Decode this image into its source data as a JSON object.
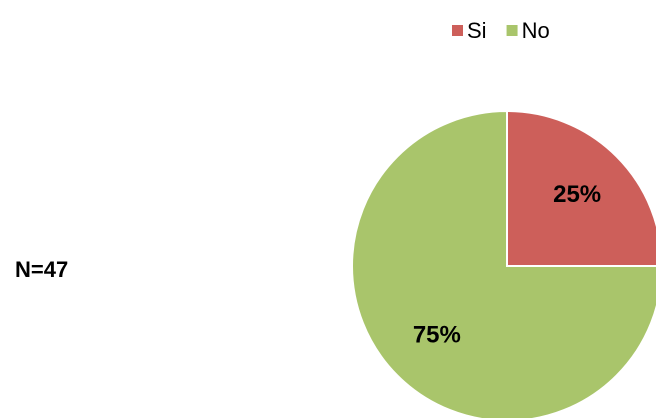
{
  "chart_data": {
    "type": "pie",
    "categories": [
      "Si",
      "No"
    ],
    "values": [
      25,
      75
    ],
    "value_labels": [
      "25%",
      "75%"
    ],
    "colors": [
      "#cd5f5a",
      "#a9c56b"
    ],
    "annotation": "N=47",
    "legend": "top"
  }
}
